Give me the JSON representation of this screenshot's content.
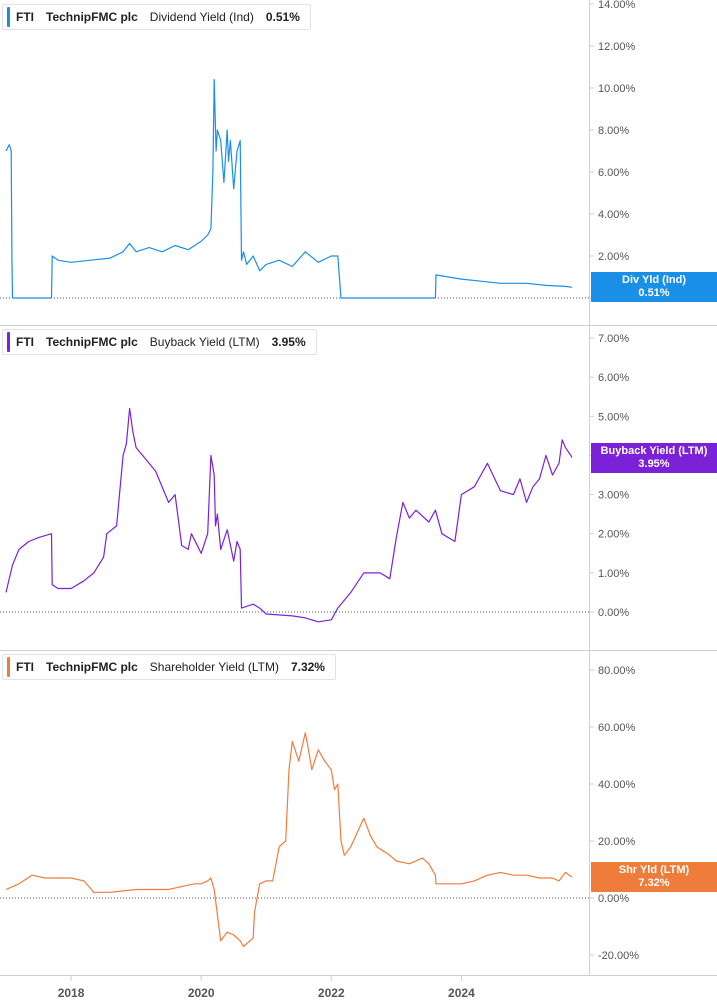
{
  "x_axis": {
    "ticks": [
      "2018",
      "2020",
      "2022",
      "2024"
    ]
  },
  "panels": [
    {
      "ticker": "FTI",
      "company": "TechnipFMC plc",
      "metric": "Dividend Yield (Ind)",
      "value": "0.51%",
      "flag_label": "Div Yld (Ind)",
      "flag_value": "0.51%",
      "color": "#1a8fe8"
    },
    {
      "ticker": "FTI",
      "company": "TechnipFMC plc",
      "metric": "Buyback Yield (LTM)",
      "value": "3.95%",
      "flag_label": "Buyback Yield (LTM)",
      "flag_value": "3.95%",
      "color": "#7b22d8"
    },
    {
      "ticker": "FTI",
      "company": "TechnipFMC plc",
      "metric": "Shareholder Yield (LTM)",
      "value": "7.32%",
      "flag_label": "Shr Yld (LTM)",
      "flag_value": "7.32%",
      "color": "#f07c3c"
    }
  ],
  "chart_data": [
    {
      "type": "line",
      "series": [
        {
          "name": "Dividend Yield (Ind)",
          "x": [
            2017.0,
            2017.05,
            2017.08,
            2017.09,
            2017.1,
            2017.7,
            2017.71,
            2017.8,
            2018.0,
            2018.3,
            2018.6,
            2018.8,
            2018.9,
            2019.0,
            2019.2,
            2019.4,
            2019.6,
            2019.8,
            2020.0,
            2020.1,
            2020.15,
            2020.18,
            2020.2,
            2020.23,
            2020.25,
            2020.3,
            2020.35,
            2020.4,
            2020.42,
            2020.45,
            2020.5,
            2020.55,
            2020.6,
            2020.62,
            2020.65,
            2020.7,
            2020.8,
            2020.9,
            2021.0,
            2021.2,
            2021.4,
            2021.6,
            2021.8,
            2022.0,
            2022.1,
            2022.15,
            2022.2,
            2022.6,
            2023.0,
            2023.5,
            2023.6,
            2023.61,
            2023.8,
            2024.0,
            2024.3,
            2024.6,
            2025.0,
            2025.3,
            2025.6,
            2025.7
          ],
          "y": [
            7.0,
            7.3,
            7.0,
            2.0,
            0.0,
            0.0,
            2.0,
            1.8,
            1.7,
            1.8,
            1.9,
            2.2,
            2.6,
            2.2,
            2.4,
            2.2,
            2.5,
            2.3,
            2.7,
            3.0,
            3.3,
            6.0,
            10.4,
            7.0,
            8.0,
            7.5,
            5.5,
            8.0,
            6.5,
            7.5,
            5.2,
            7.0,
            7.5,
            1.8,
            2.2,
            1.6,
            2.0,
            1.3,
            1.6,
            1.8,
            1.5,
            2.2,
            1.7,
            2.0,
            2.0,
            0.0,
            0.0,
            0.0,
            0.0,
            0.0,
            0.0,
            1.1,
            1.0,
            0.9,
            0.8,
            0.7,
            0.7,
            0.6,
            0.55,
            0.51
          ]
        }
      ],
      "ylim": [
        -0.5,
        14
      ],
      "yticks": [
        "14.00%",
        "12.00%",
        "10.00%",
        "8.00%",
        "6.00%",
        "4.00%",
        "2.00%",
        "0.00%"
      ]
    },
    {
      "type": "line",
      "series": [
        {
          "name": "Buyback Yield (LTM)",
          "x": [
            2017.0,
            2017.1,
            2017.2,
            2017.35,
            2017.5,
            2017.7,
            2017.71,
            2017.8,
            2018.0,
            2018.2,
            2018.35,
            2018.5,
            2018.55,
            2018.7,
            2018.8,
            2018.85,
            2018.9,
            2018.95,
            2019.0,
            2019.1,
            2019.3,
            2019.5,
            2019.6,
            2019.7,
            2019.8,
            2019.85,
            2020.0,
            2020.1,
            2020.15,
            2020.2,
            2020.22,
            2020.25,
            2020.3,
            2020.4,
            2020.5,
            2020.55,
            2020.6,
            2020.62,
            2020.8,
            2020.9,
            2021.0,
            2021.4,
            2021.6,
            2021.8,
            2022.0,
            2022.1,
            2022.3,
            2022.5,
            2022.75,
            2022.9,
            2023.0,
            2023.1,
            2023.2,
            2023.3,
            2023.5,
            2023.6,
            2023.7,
            2023.9,
            2024.0,
            2024.2,
            2024.3,
            2024.4,
            2024.6,
            2024.8,
            2024.9,
            2025.0,
            2025.1,
            2025.2,
            2025.3,
            2025.4,
            2025.5,
            2025.55,
            2025.6,
            2025.7
          ],
          "y": [
            0.5,
            1.2,
            1.6,
            1.8,
            1.9,
            2.0,
            0.7,
            0.6,
            0.6,
            0.8,
            1.0,
            1.4,
            2.0,
            2.2,
            4.0,
            4.3,
            5.2,
            4.6,
            4.2,
            4.0,
            3.6,
            2.8,
            3.0,
            1.7,
            1.6,
            2.0,
            1.5,
            2.0,
            4.0,
            3.5,
            2.2,
            2.5,
            1.6,
            2.1,
            1.3,
            1.8,
            1.6,
            0.1,
            0.2,
            0.1,
            -0.05,
            -0.1,
            -0.15,
            -0.25,
            -0.2,
            0.1,
            0.5,
            1.0,
            1.0,
            0.85,
            1.9,
            2.8,
            2.4,
            2.6,
            2.3,
            2.6,
            2.0,
            1.8,
            3.0,
            3.2,
            3.5,
            3.8,
            3.1,
            3.0,
            3.4,
            2.8,
            3.2,
            3.4,
            4.0,
            3.5,
            3.8,
            4.4,
            4.2,
            3.95
          ]
        }
      ],
      "ylim": [
        -0.5,
        7.5
      ],
      "yticks": [
        "7.00%",
        "6.00%",
        "5.00%",
        "4.00%",
        "3.00%",
        "2.00%",
        "1.00%",
        "0.00%"
      ]
    },
    {
      "type": "line",
      "series": [
        {
          "name": "Shareholder Yield (LTM)",
          "x": [
            2017.0,
            2017.2,
            2017.4,
            2017.6,
            2017.8,
            2018.0,
            2018.2,
            2018.35,
            2018.6,
            2018.8,
            2019.0,
            2019.2,
            2019.5,
            2019.7,
            2019.9,
            2020.0,
            2020.1,
            2020.15,
            2020.2,
            2020.3,
            2020.4,
            2020.5,
            2020.6,
            2020.65,
            2020.8,
            2020.82,
            2020.9,
            2021.0,
            2021.1,
            2021.2,
            2021.3,
            2021.35,
            2021.4,
            2021.5,
            2021.6,
            2021.65,
            2021.7,
            2021.8,
            2021.9,
            2022.0,
            2022.05,
            2022.1,
            2022.15,
            2022.2,
            2022.3,
            2022.5,
            2022.6,
            2022.7,
            2022.9,
            2023.0,
            2023.2,
            2023.4,
            2023.5,
            2023.6,
            2023.61,
            2023.8,
            2024.0,
            2024.2,
            2024.4,
            2024.6,
            2024.8,
            2025.0,
            2025.2,
            2025.4,
            2025.5,
            2025.6,
            2025.7
          ],
          "y": [
            3,
            5,
            8,
            7,
            7,
            7,
            6,
            2,
            2,
            2.5,
            3,
            3,
            3,
            4,
            5,
            5,
            6,
            7,
            3,
            -15,
            -12,
            -13,
            -15,
            -17,
            -14,
            -5,
            5,
            6,
            6,
            18,
            20,
            45,
            55,
            48,
            58,
            52,
            45,
            52,
            48,
            45,
            38,
            40,
            20,
            15,
            18,
            28,
            22,
            18,
            15,
            13,
            12,
            14,
            12,
            8,
            5,
            5,
            5,
            6,
            8,
            9,
            8,
            8,
            7,
            7,
            6,
            9,
            7.3
          ]
        }
      ],
      "ylim": [
        -20,
        85
      ],
      "yticks": [
        "80.00%",
        "60.00%",
        "40.00%",
        "20.00%",
        "0.00%",
        "-20.00%"
      ]
    }
  ]
}
